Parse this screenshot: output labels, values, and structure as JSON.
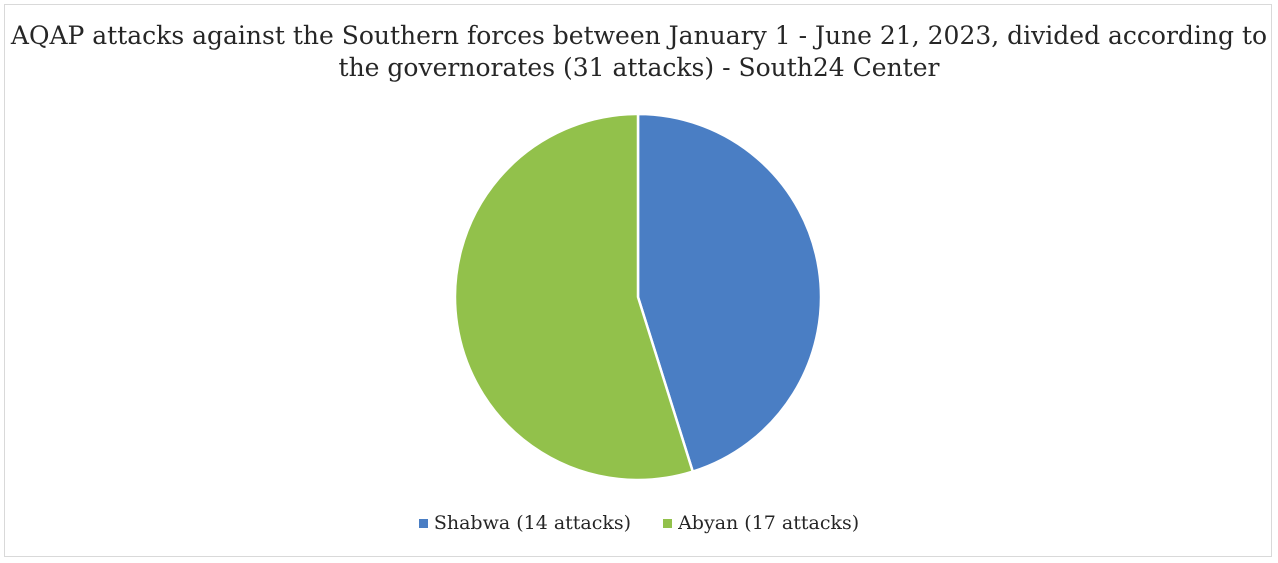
{
  "chart_data": {
    "type": "pie",
    "title": "AQAP attacks against the Southern forces between January 1 - June 21, 2023, divided according to the governorates (31 attacks) - South24 Center",
    "categories": [
      "Shabwa (14 attacks)",
      "Abyan (17 attacks)"
    ],
    "values": [
      14,
      17
    ],
    "colors": [
      "#4a7ec4",
      "#92c14b"
    ],
    "legend_position": "bottom"
  }
}
